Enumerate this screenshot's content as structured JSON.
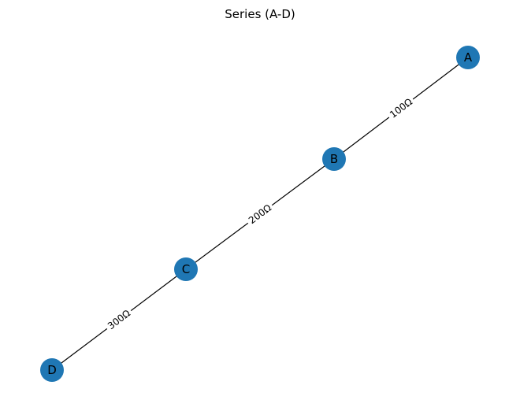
{
  "diagram": {
    "title": "Series (A-D)",
    "node_color": "#1f77b4",
    "edge_color": "#000000",
    "nodes": [
      {
        "id": "A",
        "label": "A"
      },
      {
        "id": "B",
        "label": "B"
      },
      {
        "id": "C",
        "label": "C"
      },
      {
        "id": "D",
        "label": "D"
      }
    ],
    "edges": [
      {
        "from": "A",
        "to": "B",
        "label": "100Ω"
      },
      {
        "from": "B",
        "to": "C",
        "label": "200Ω"
      },
      {
        "from": "C",
        "to": "D",
        "label": "300Ω"
      }
    ]
  }
}
